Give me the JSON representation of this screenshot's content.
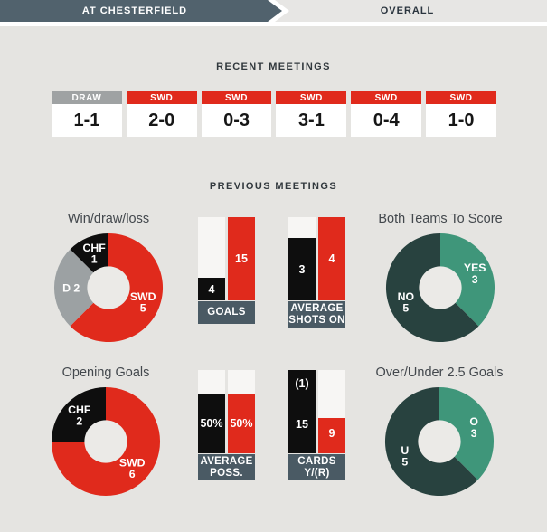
{
  "tabs": {
    "active_label": "AT CHESTERFIELD",
    "inactive_label": "OVERALL"
  },
  "sections": {
    "recent_meetings_title": "RECENT MEETINGS",
    "previous_meetings_title": "PREVIOUS MEETINGS"
  },
  "recent_meetings": {
    "items": [
      {
        "result": "DRAW",
        "score": "1-1",
        "type": "draw"
      },
      {
        "result": "SWD",
        "score": "2-0",
        "type": "swd"
      },
      {
        "result": "SWD",
        "score": "0-3",
        "type": "swd"
      },
      {
        "result": "SWD",
        "score": "3-1",
        "type": "swd"
      },
      {
        "result": "SWD",
        "score": "0-4",
        "type": "swd"
      },
      {
        "result": "SWD",
        "score": "1-0",
        "type": "swd"
      }
    ]
  },
  "colors": {
    "red": "#e02a1c",
    "black": "#0e0e0e",
    "draw_gray": "#9fa2a3",
    "donut_gray": "#9ca1a3",
    "slate_dark": "#51626d",
    "label_slate": "#4a5a64",
    "green": "#3f967a",
    "dark_teal": "#28423f",
    "bar_empty": "#f7f6f4",
    "page_bg": "#e5e4e1",
    "donut_hole": "#ebeae7"
  },
  "chart_data": [
    {
      "type": "donut",
      "key": "win-draw-loss",
      "title": "Win/draw/loss",
      "total": 8,
      "legend_position": "on-segments",
      "segments": [
        {
          "name": "SWD",
          "value": 5,
          "label_lines": [
            "SWD",
            "5"
          ],
          "color": "#e02a1c"
        },
        {
          "name": "DRAW",
          "value": 2,
          "label_lines": [
            "D 2"
          ],
          "color": "#9ca1a3"
        },
        {
          "name": "CHF",
          "value": 1,
          "label_lines": [
            "CHF",
            "1"
          ],
          "color": "#0e0e0e"
        }
      ]
    },
    {
      "type": "bar-pair",
      "key": "goals",
      "title_lines": [
        "GOALS"
      ],
      "ymax": 15,
      "bars": [
        {
          "team": "CHF",
          "value": 4,
          "labels": [
            {
              "text": "4"
            }
          ],
          "color": "#0e0e0e",
          "fill_pct": 27
        },
        {
          "team": "SWD",
          "value": 15,
          "labels": [
            {
              "text": "15"
            }
          ],
          "color": "#e02a1c",
          "fill_pct": 100
        }
      ]
    },
    {
      "type": "bar-pair",
      "key": "average-shots-on",
      "title_lines": [
        "AVERAGE",
        "SHOTS ON"
      ],
      "ymax": 4,
      "bars": [
        {
          "team": "CHF",
          "value": 3,
          "labels": [
            {
              "text": "3"
            }
          ],
          "color": "#0e0e0e",
          "fill_pct": 75
        },
        {
          "team": "SWD",
          "value": 4,
          "labels": [
            {
              "text": "4"
            }
          ],
          "color": "#e02a1c",
          "fill_pct": 100
        }
      ]
    },
    {
      "type": "donut",
      "key": "both-teams-to-score",
      "title": "Both Teams To Score",
      "total": 8,
      "legend_position": "on-segments",
      "segments": [
        {
          "name": "YES",
          "value": 3,
          "label_lines": [
            "YES",
            "3"
          ],
          "color": "#3f967a"
        },
        {
          "name": "NO",
          "value": 5,
          "label_lines": [
            "NO",
            "5"
          ],
          "color": "#28423f"
        }
      ]
    },
    {
      "type": "donut",
      "key": "opening-goals",
      "title": "Opening Goals",
      "total": 8,
      "legend_position": "on-segments",
      "segments": [
        {
          "name": "SWD",
          "value": 6,
          "label_lines": [
            "SWD",
            "6"
          ],
          "color": "#e02a1c"
        },
        {
          "name": "CHF",
          "value": 2,
          "label_lines": [
            "CHF",
            "2"
          ],
          "color": "#0e0e0e"
        }
      ]
    },
    {
      "type": "bar-pair",
      "key": "average-possession",
      "title_lines": [
        "AVERAGE",
        "POSS."
      ],
      "bars": [
        {
          "team": "CHF",
          "value": "50%",
          "labels": [
            {
              "text": "50%"
            }
          ],
          "color": "#0e0e0e",
          "fill_pct": 72
        },
        {
          "team": "SWD",
          "value": "50%",
          "labels": [
            {
              "text": "50%"
            }
          ],
          "color": "#e02a1c",
          "fill_pct": 72
        }
      ]
    },
    {
      "type": "bar-pair",
      "key": "cards-yellow-red",
      "title_lines": [
        "CARDS",
        "Y/(R)"
      ],
      "bars": [
        {
          "team": "CHF",
          "value": 15,
          "labels": [
            {
              "text": "(1)",
              "pos_pct": 16
            },
            {
              "text": "15",
              "pos_pct": 65
            }
          ],
          "color": "#0e0e0e",
          "fill_pct": 100
        },
        {
          "team": "SWD",
          "value": 9,
          "labels": [
            {
              "text": "9",
              "pos_pct": 76
            }
          ],
          "color": "#e02a1c",
          "fill_pct": 42
        }
      ]
    },
    {
      "type": "donut",
      "key": "over-under-2-5-goals",
      "title": "Over/Under 2.5 Goals",
      "total": 8,
      "legend_position": "on-segments",
      "segments": [
        {
          "name": "OVER",
          "value": 3,
          "label_lines": [
            "O",
            "3"
          ],
          "color": "#3f967a"
        },
        {
          "name": "UNDER",
          "value": 5,
          "label_lines": [
            "U",
            "5"
          ],
          "color": "#28423f"
        }
      ]
    }
  ]
}
